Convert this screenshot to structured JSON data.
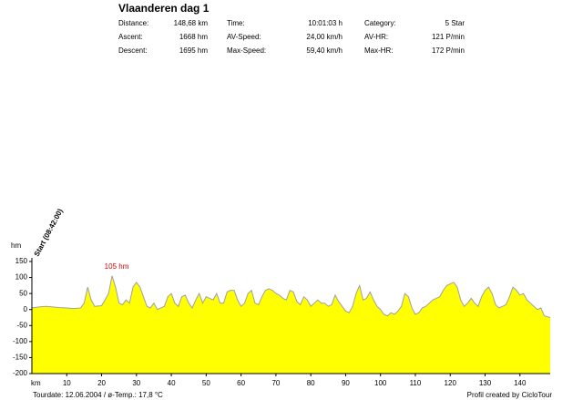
{
  "header": {
    "title": "Vlaanderen dag 1",
    "stats": [
      [
        [
          "Distance:",
          "148,68 km"
        ],
        [
          "Time:",
          "10:01:03 h"
        ],
        [
          "Category:",
          "5 Star"
        ]
      ],
      [
        [
          "Ascent:",
          "1668 hm"
        ],
        [
          "AV-Speed:",
          "24,00 km/h"
        ],
        [
          "AV-HR:",
          "121 P/min"
        ]
      ],
      [
        [
          "Descent:",
          "1695 hm"
        ],
        [
          "Max-Speed:",
          "59,40 km/h"
        ],
        [
          "Max-HR:",
          "172 P/min"
        ]
      ]
    ]
  },
  "chart_data": {
    "type": "area",
    "x_label": "km",
    "y_label": "hm",
    "start_label": "Start (08:42:00)",
    "peak_label": "105 hm",
    "color": "#ffff00",
    "line_color": "#a0a0a0",
    "xlim": [
      0,
      148.68
    ],
    "ylim": [
      -200,
      150
    ],
    "xticks": [
      10,
      20,
      30,
      40,
      50,
      60,
      70,
      80,
      90,
      100,
      110,
      120,
      130,
      140
    ],
    "yticks": [
      -200,
      -150,
      -100,
      -50,
      0,
      50,
      100,
      150
    ],
    "x": [
      0,
      2,
      4,
      6,
      8,
      10,
      12,
      14,
      15,
      16,
      17,
      18,
      20,
      21,
      22,
      23,
      24,
      25,
      26,
      27,
      28,
      29,
      30,
      31,
      32,
      33,
      34,
      35,
      36,
      37,
      38,
      39,
      40,
      41,
      42,
      43,
      44,
      45,
      46,
      47,
      48,
      49,
      50,
      51,
      52,
      53,
      54,
      55,
      56,
      57,
      58,
      59,
      60,
      61,
      62,
      63,
      64,
      65,
      66,
      67,
      68,
      69,
      70,
      71,
      72,
      73,
      74,
      75,
      76,
      77,
      78,
      79,
      80,
      81,
      82,
      83,
      84,
      85,
      86,
      87,
      88,
      89,
      90,
      91,
      92,
      93,
      94,
      95,
      96,
      97,
      98,
      99,
      100,
      101,
      102,
      103,
      104,
      105,
      106,
      107,
      108,
      109,
      110,
      111,
      112,
      113,
      114,
      115,
      116,
      117,
      118,
      119,
      120,
      121,
      122,
      123,
      124,
      125,
      126,
      127,
      128,
      129,
      130,
      131,
      132,
      133,
      134,
      135,
      136,
      137,
      138,
      139,
      140,
      141,
      142,
      143,
      144,
      145,
      146,
      147,
      148.68
    ],
    "values": [
      5,
      8,
      10,
      8,
      6,
      5,
      3,
      5,
      20,
      70,
      30,
      10,
      12,
      30,
      50,
      105,
      70,
      20,
      15,
      30,
      20,
      70,
      85,
      70,
      40,
      10,
      5,
      20,
      0,
      5,
      10,
      40,
      50,
      20,
      10,
      40,
      45,
      20,
      5,
      30,
      50,
      20,
      40,
      35,
      30,
      50,
      20,
      20,
      55,
      60,
      60,
      30,
      10,
      20,
      50,
      60,
      20,
      15,
      40,
      60,
      65,
      60,
      50,
      45,
      35,
      30,
      60,
      55,
      25,
      15,
      40,
      30,
      10,
      20,
      30,
      20,
      20,
      10,
      15,
      45,
      25,
      10,
      -5,
      -10,
      10,
      50,
      75,
      30,
      35,
      55,
      30,
      10,
      0,
      -15,
      -20,
      -10,
      -15,
      -5,
      10,
      50,
      40,
      5,
      -15,
      -10,
      5,
      10,
      20,
      30,
      35,
      40,
      60,
      75,
      80,
      85,
      70,
      30,
      10,
      20,
      35,
      20,
      10,
      40,
      60,
      70,
      50,
      15,
      5,
      10,
      15,
      40,
      70,
      60,
      45,
      50,
      30,
      20,
      10,
      0,
      5,
      -20,
      -25
    ]
  },
  "footer": {
    "left": "Tourdate: 12.06.2004  /  ø-Temp.: 17,8 °C",
    "right": "Profil created by CicloTour"
  }
}
